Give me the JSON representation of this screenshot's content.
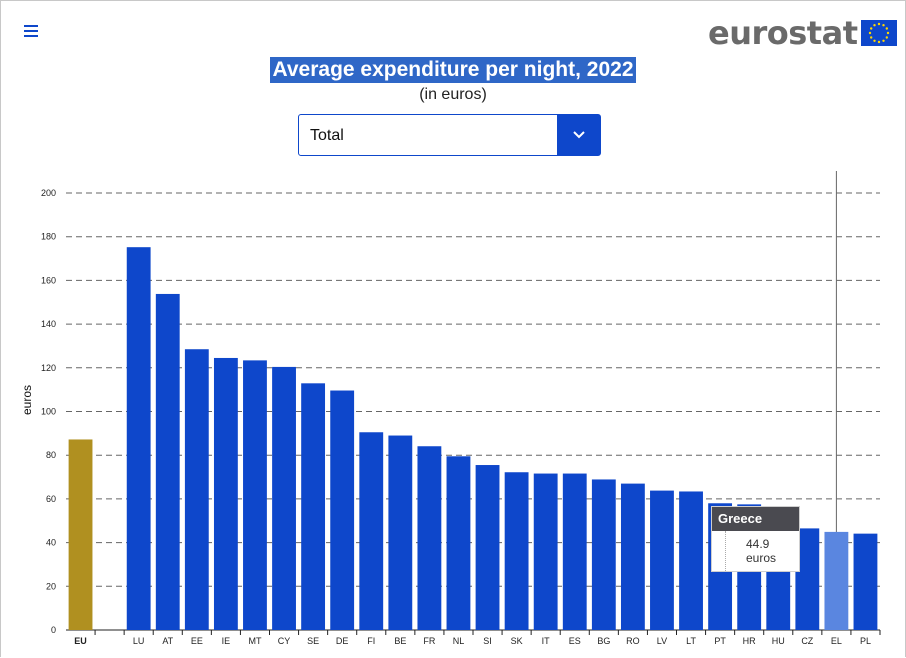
{
  "header": {
    "menu_icon": "hamburger-menu-icon",
    "logo_text": "eurostat",
    "logo_flag_icon": "eu-flag-icon"
  },
  "colors": {
    "bar": "#0e47cb",
    "bar_highlight": "#5a86e0",
    "bar_eu": "#b09020",
    "title_bg": "#2f67c7"
  },
  "dropdown": {
    "value": "Total",
    "icon": "chevron-down-icon"
  },
  "tooltip": {
    "title": "Greece",
    "value": "44.9 euros"
  },
  "chart_data": {
    "type": "bar",
    "title": "Average expenditure per night, 2022",
    "subtitle": "(in euros)",
    "ylabel": "euros",
    "ylim": [
      0,
      200
    ],
    "yticks": [
      0,
      20,
      40,
      60,
      80,
      100,
      120,
      140,
      160,
      180,
      200
    ],
    "grid": true,
    "categories": [
      "EU",
      "",
      "LU",
      "AT",
      "EE",
      "IE",
      "MT",
      "CY",
      "SE",
      "DE",
      "FI",
      "BE",
      "FR",
      "NL",
      "SI",
      "SK",
      "IT",
      "ES",
      "BG",
      "RO",
      "LV",
      "LT",
      "PT",
      "HR",
      "HU",
      "CZ",
      "EL",
      "PL"
    ],
    "values": [
      87.2,
      null,
      175.2,
      153.8,
      128.5,
      124.5,
      123.4,
      120.4,
      112.9,
      109.6,
      90.5,
      89.0,
      84.1,
      79.5,
      75.5,
      72.2,
      71.6,
      71.6,
      68.9,
      67.0,
      63.8,
      63.4,
      58.0,
      57.5,
      52.0,
      46.5,
      44.9,
      44.1
    ],
    "highlighted": "EL"
  }
}
